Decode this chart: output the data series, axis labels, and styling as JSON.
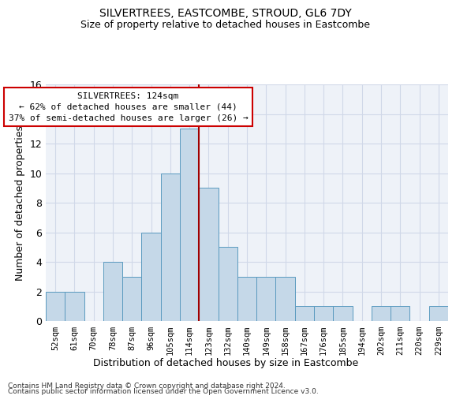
{
  "title": "SILVERTREES, EASTCOMBE, STROUD, GL6 7DY",
  "subtitle": "Size of property relative to detached houses in Eastcombe",
  "xlabel": "Distribution of detached houses by size in Eastcombe",
  "ylabel": "Number of detached properties",
  "categories": [
    "52sqm",
    "61sqm",
    "70sqm",
    "78sqm",
    "87sqm",
    "96sqm",
    "105sqm",
    "114sqm",
    "123sqm",
    "132sqm",
    "140sqm",
    "149sqm",
    "158sqm",
    "167sqm",
    "176sqm",
    "185sqm",
    "194sqm",
    "202sqm",
    "211sqm",
    "220sqm",
    "229sqm"
  ],
  "values": [
    2,
    2,
    0,
    4,
    3,
    6,
    10,
    13,
    9,
    5,
    3,
    3,
    3,
    1,
    1,
    1,
    0,
    1,
    1,
    0,
    1
  ],
  "bar_color": "#c5d8e8",
  "bar_edge_color": "#5a9abf",
  "vline_index": 8,
  "vline_color": "#a00000",
  "annotation_line1": "SILVERTREES: 124sqm",
  "annotation_line2": "← 62% of detached houses are smaller (44)",
  "annotation_line3": "37% of semi-detached houses are larger (26) →",
  "annotation_box_color": "#ffffff",
  "annotation_box_edge_color": "#cc0000",
  "ylim": [
    0,
    16
  ],
  "yticks": [
    0,
    2,
    4,
    6,
    8,
    10,
    12,
    14,
    16
  ],
  "grid_color": "#d0d8e8",
  "background_color": "#eef2f8",
  "footer1": "Contains HM Land Registry data © Crown copyright and database right 2024.",
  "footer2": "Contains public sector information licensed under the Open Government Licence v3.0."
}
